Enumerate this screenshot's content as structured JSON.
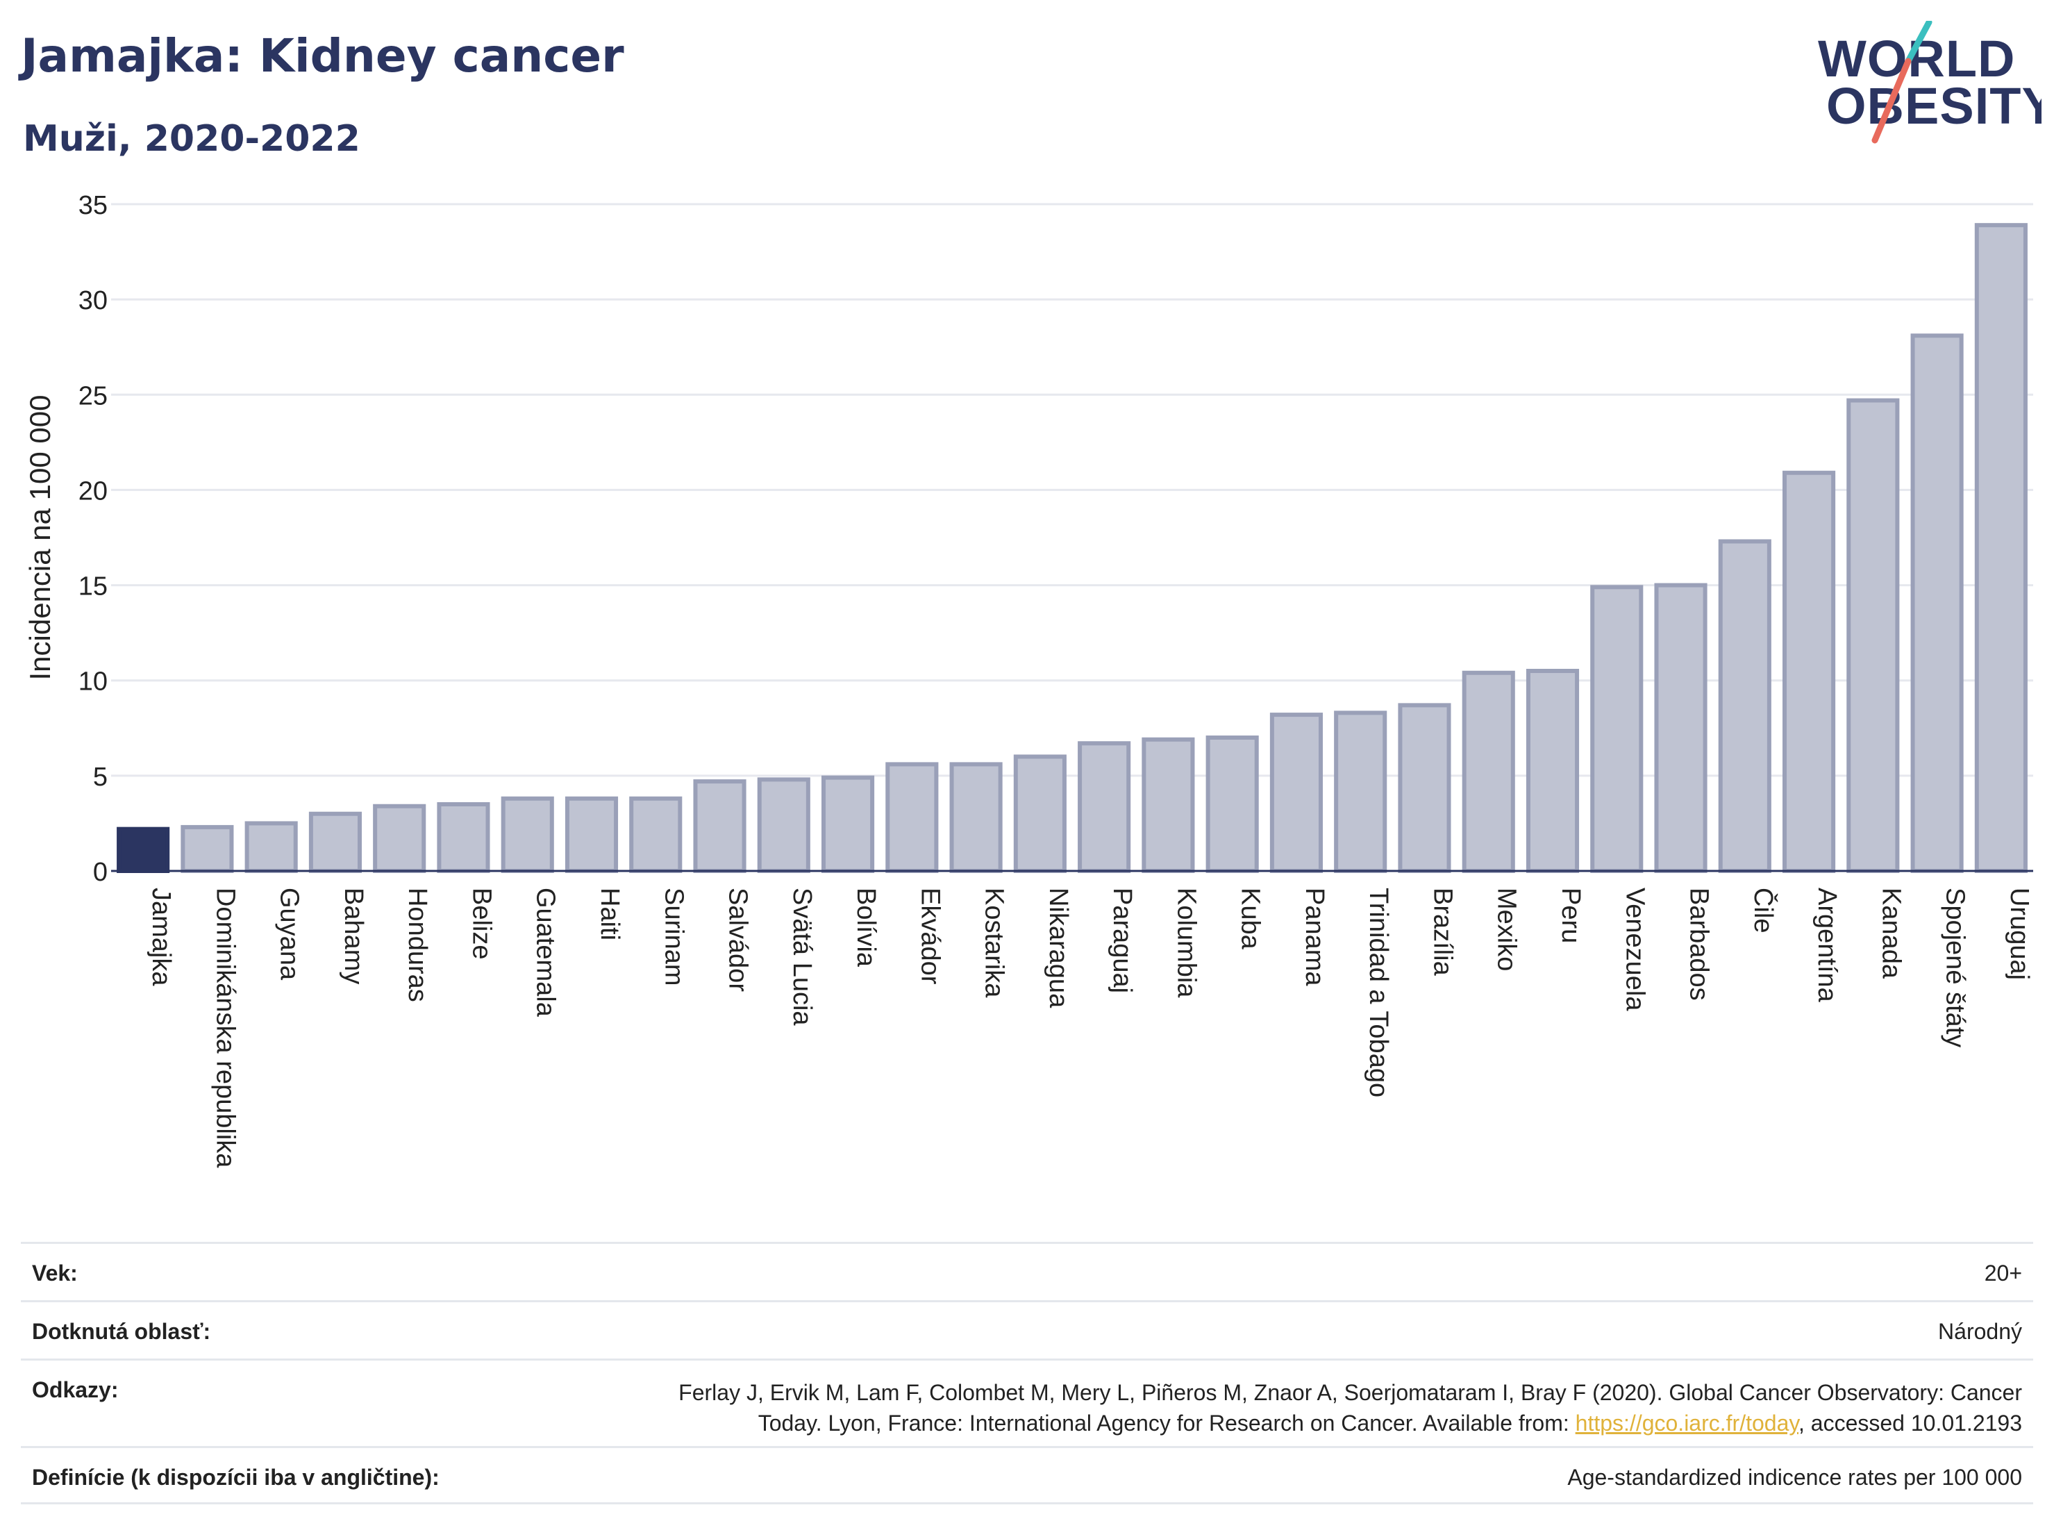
{
  "header": {
    "title": "Jamajka: Kidney cancer",
    "subtitle": "Muži, 2020-2022"
  },
  "logo": {
    "line1": "WORLD",
    "line2": "OBESITY",
    "accent_teal": "#3bbfbf",
    "accent_red": "#e86a5c",
    "text_color": "#2b3561"
  },
  "chart_data": {
    "type": "bar",
    "title": "Jamajka: Kidney cancer",
    "subtitle": "Muži, 2020-2022",
    "ylabel": "Incidencia na 100 000",
    "xlabel": "",
    "ylim": [
      0,
      35
    ],
    "yticks": [
      0,
      5,
      10,
      15,
      20,
      25,
      30,
      35
    ],
    "grid": true,
    "highlight_category": "Jamajka",
    "colors": {
      "highlight": "#2b3561",
      "bar_fill": "#bfc3d2",
      "bar_stroke": "#9aa0b8"
    },
    "categories": [
      "Jamajka",
      "Dominikánska republika",
      "Guyana",
      "Bahamy",
      "Honduras",
      "Belize",
      "Guatemala",
      "Haiti",
      "Surinam",
      "Salvádor",
      "Svätá Lucia",
      "Bolívia",
      "Ekvádor",
      "Kostarika",
      "Nikaragua",
      "Paraguaj",
      "Kolumbia",
      "Kuba",
      "Panama",
      "Trinidad a Tobago",
      "Brazília",
      "Mexiko",
      "Peru",
      "Venezuela",
      "Barbados",
      "Čile",
      "Argentína",
      "Kanada",
      "Spojené štáty",
      "Uruguaj"
    ],
    "values": [
      2.2,
      2.3,
      2.5,
      3.0,
      3.4,
      3.5,
      3.8,
      3.8,
      3.8,
      4.7,
      4.8,
      4.9,
      5.6,
      5.6,
      6.0,
      6.7,
      6.9,
      7.0,
      8.2,
      8.3,
      8.7,
      10.4,
      10.5,
      14.9,
      15.0,
      17.3,
      20.9,
      24.7,
      28.1,
      33.9
    ]
  },
  "footer": {
    "rows": [
      {
        "label": "Vek:",
        "value": "20+"
      },
      {
        "label": "Dotknutá oblasť:",
        "value": "Národný"
      },
      {
        "label": "Odkazy:",
        "value_line1": "Ferlay J, Ervik M, Lam F, Colombet M, Mery L, Piñeros M, Znaor A, Soerjomataram I, Bray F (2020). Global Cancer Observatory: Cancer",
        "value_line2_pre": "Today. Lyon, France: International Agency for Research on Cancer. Available from: ",
        "link": "https://gco.iarc.fr/today",
        "value_line2_post": ", accessed 10.01.2193"
      },
      {
        "label": "Definície (k dispozícii iba v angličtine):",
        "value": "Age-standardized indicence rates per 100 000"
      }
    ]
  }
}
